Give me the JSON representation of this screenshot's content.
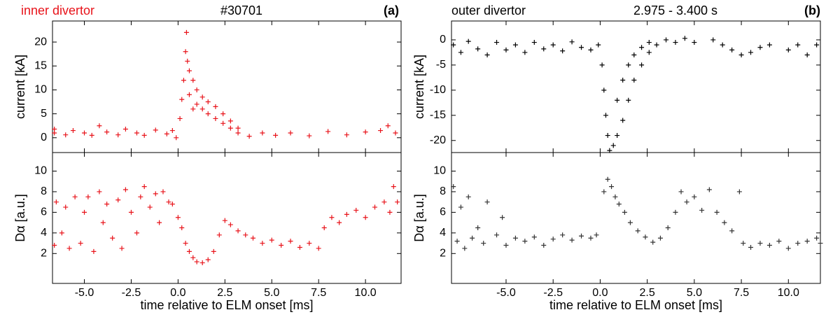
{
  "chart_data": [
    {
      "type": "scatter",
      "ylabel": "current [kA]",
      "color": "#e8131a",
      "annotations": [
        {
          "text": "inner divertor",
          "color": "#e8131a"
        },
        {
          "text": "#30701",
          "color": "#000000"
        },
        {
          "text": "(a)",
          "color": "#000000"
        }
      ],
      "xlim": [
        -6.7,
        11.9
      ],
      "ylim": [
        -3.1,
        24.4
      ],
      "xticks": [
        -5,
        -2.5,
        0,
        2.5,
        5,
        7.5,
        10
      ],
      "yticks": [
        0,
        5,
        10,
        15,
        20
      ],
      "x": [
        -6.6,
        -6.6,
        -6.0,
        -5.6,
        -5.0,
        -4.6,
        -4.2,
        -3.8,
        -3.2,
        -2.8,
        -2.2,
        -1.8,
        -1.2,
        -0.6,
        -0.3,
        -0.1,
        0.1,
        0.2,
        0.3,
        0.4,
        0.45,
        0.5,
        0.6,
        0.6,
        0.8,
        0.8,
        1.0,
        1.0,
        1.3,
        1.3,
        1.6,
        1.6,
        2.0,
        2.0,
        2.4,
        2.4,
        2.8,
        2.8,
        3.2,
        3.2,
        3.8,
        4.5,
        5.2,
        6,
        7,
        8,
        9,
        10,
        10.8,
        11.2,
        11.6
      ],
      "values": [
        1,
        1.8,
        0.6,
        1.5,
        1,
        0.5,
        2.5,
        1.2,
        0.6,
        1.8,
        1,
        0.5,
        1.6,
        0.8,
        1.5,
        0,
        4,
        8,
        12,
        18,
        22,
        16,
        9,
        14,
        6,
        12,
        7,
        10,
        6,
        8.5,
        5,
        7.5,
        4,
        6.5,
        3,
        5,
        2,
        3.5,
        1,
        2,
        0.3,
        1,
        0.5,
        1,
        0.4,
        1.3,
        0.6,
        1.2,
        1.5,
        2.5,
        1
      ]
    },
    {
      "type": "scatter",
      "ylabel": "Dα [a.u.]",
      "xlabel": "time relative to ELM onset [ms]",
      "color": "#e8131a",
      "xlim": [
        -6.7,
        11.9
      ],
      "ylim": [
        -0.9,
        11.8
      ],
      "xticks": [
        {
          "value": -5,
          "label": "-5.0"
        },
        {
          "value": -2.5,
          "label": "-2.5"
        },
        {
          "value": 0,
          "label": "0.0"
        },
        {
          "value": 2.5,
          "label": "2.5"
        },
        {
          "value": 5,
          "label": "5.0"
        },
        {
          "value": 7.5,
          "label": "7.5"
        },
        {
          "value": 10,
          "label": "10.0"
        }
      ],
      "yticks": [
        2,
        4,
        6,
        8,
        10
      ],
      "x": [
        -6.6,
        -6.5,
        -6.2,
        -6,
        -5.8,
        -5.5,
        -5.2,
        -5,
        -4.8,
        -4.5,
        -4.2,
        -4,
        -3.8,
        -3.5,
        -3.2,
        -3,
        -2.8,
        -2.5,
        -2.2,
        -2,
        -1.8,
        -1.5,
        -1.2,
        -1,
        -0.8,
        -0.5,
        -0.3,
        0,
        0.2,
        0.4,
        0.6,
        0.8,
        1.0,
        1.3,
        1.6,
        1.9,
        2.2,
        2.5,
        2.8,
        3.2,
        3.6,
        4,
        4.5,
        5,
        5.5,
        6,
        6.5,
        7,
        7.5,
        7.8,
        8.2,
        8.6,
        9,
        9.5,
        10,
        10.5,
        11,
        11.3,
        11.5,
        11.7
      ],
      "values": [
        2.8,
        7,
        4,
        6.5,
        2.5,
        7.5,
        3,
        6,
        7.5,
        2.2,
        8,
        5,
        6.8,
        3.5,
        7.2,
        2.5,
        8.2,
        6,
        4,
        7.5,
        8.5,
        6.5,
        7.8,
        5,
        8,
        7,
        6.8,
        5.5,
        4.5,
        3,
        2.2,
        1.6,
        1.2,
        1.1,
        1.4,
        2.2,
        3.8,
        5.2,
        4.8,
        4.2,
        3.8,
        3.5,
        3,
        3.3,
        2.8,
        3.2,
        2.6,
        3,
        2.5,
        4.5,
        5.5,
        5,
        5.8,
        6.2,
        5.5,
        6.5,
        7,
        6,
        8.5,
        7
      ]
    },
    {
      "type": "scatter",
      "ylabel": "current [kA]",
      "color": "#000000",
      "annotations": [
        {
          "text": "outer divertor",
          "color": "#000000"
        },
        {
          "text": "2.975 - 3.400 s",
          "color": "#000000"
        },
        {
          "text": "(b)",
          "color": "#000000"
        }
      ],
      "xlim": [
        -7.9,
        11.7
      ],
      "ylim": [
        -22.4,
        3.75
      ],
      "xticks": [
        -5,
        -2.5,
        0,
        2.5,
        5,
        7.5,
        10
      ],
      "yticks": [
        0,
        -5,
        -10,
        -15,
        -20
      ],
      "x": [
        -7.8,
        -7.4,
        -7,
        -6.5,
        -6,
        -5.5,
        -5,
        -4.5,
        -4,
        -3.5,
        -3,
        -2.5,
        -2,
        -1.5,
        -1,
        -0.5,
        -0.1,
        0.1,
        0.2,
        0.3,
        0.4,
        0.5,
        0.7,
        0.9,
        0.9,
        1.2,
        1.2,
        1.5,
        1.5,
        1.8,
        1.8,
        2.2,
        2.2,
        2.6,
        2.6,
        3,
        3.5,
        4,
        4.5,
        5,
        6,
        6.5,
        7,
        7.5,
        8,
        8.5,
        9,
        10,
        10.5,
        11,
        11.5
      ],
      "values": [
        -1,
        -2.5,
        -0.3,
        -1.8,
        -3,
        -0.5,
        -2,
        -1,
        -2.5,
        -0.5,
        -1.8,
        -1,
        -2.2,
        -0.4,
        -1.5,
        -2,
        -1,
        -5,
        -10,
        -15,
        -19,
        -22,
        -21,
        -19,
        -12,
        -16,
        -8,
        -12,
        -5,
        -8,
        -3,
        -5,
        -1.5,
        -2.5,
        -0.5,
        -1,
        0,
        -0.5,
        0.3,
        -0.5,
        0,
        -1,
        -2,
        -3,
        -2.5,
        -1.5,
        -1,
        -2,
        -1,
        -3,
        -1
      ]
    },
    {
      "type": "scatter",
      "ylabel": "Dα [a.u.]",
      "xlabel": "time relative to ELM onset [ms]",
      "color": "#333333",
      "xlim": [
        -7.9,
        11.7
      ],
      "ylim": [
        -0.9,
        11.8
      ],
      "xticks": [
        {
          "value": -5,
          "label": "-5.0"
        },
        {
          "value": -2.5,
          "label": "-2.5"
        },
        {
          "value": 0,
          "label": "0.0"
        },
        {
          "value": 2.5,
          "label": "2.5"
        },
        {
          "value": 5,
          "label": "5.0"
        },
        {
          "value": 7.5,
          "label": "7.5"
        },
        {
          "value": 10,
          "label": "10.0"
        }
      ],
      "yticks": [
        2,
        4,
        6,
        8,
        10
      ],
      "x": [
        -7.8,
        -7.6,
        -7.4,
        -7.2,
        -7,
        -6.8,
        -6.5,
        -6.2,
        -6,
        -5.5,
        -5.2,
        -5,
        -4.5,
        -4,
        -3.5,
        -3,
        -2.5,
        -2,
        -1.5,
        -1,
        -0.5,
        -0.2,
        0.2,
        0.4,
        0.6,
        0.8,
        1,
        1.3,
        1.6,
        2,
        2.4,
        2.8,
        3.2,
        3.6,
        4,
        4.3,
        4.6,
        5,
        5.4,
        5.8,
        6.2,
        6.6,
        7,
        7.4,
        7.6,
        8,
        8.5,
        9,
        9.5,
        10,
        10.5,
        11,
        11.5,
        11.7
      ],
      "values": [
        8.5,
        3.2,
        6.5,
        2.5,
        7.5,
        3.5,
        4.5,
        3,
        7,
        3.8,
        5.5,
        2.8,
        3.5,
        3.2,
        3.6,
        2.8,
        3.4,
        3.8,
        3.3,
        3.7,
        3.5,
        3.8,
        8,
        9.2,
        8.5,
        7.5,
        6.8,
        6,
        5,
        4.2,
        3.6,
        3.1,
        3.5,
        4.5,
        6,
        8,
        7,
        7.5,
        6.2,
        8.2,
        6,
        5,
        4.2,
        8,
        3,
        2.6,
        3,
        2.8,
        3.2,
        2.5,
        3,
        3.2,
        3.5,
        3
      ]
    }
  ]
}
